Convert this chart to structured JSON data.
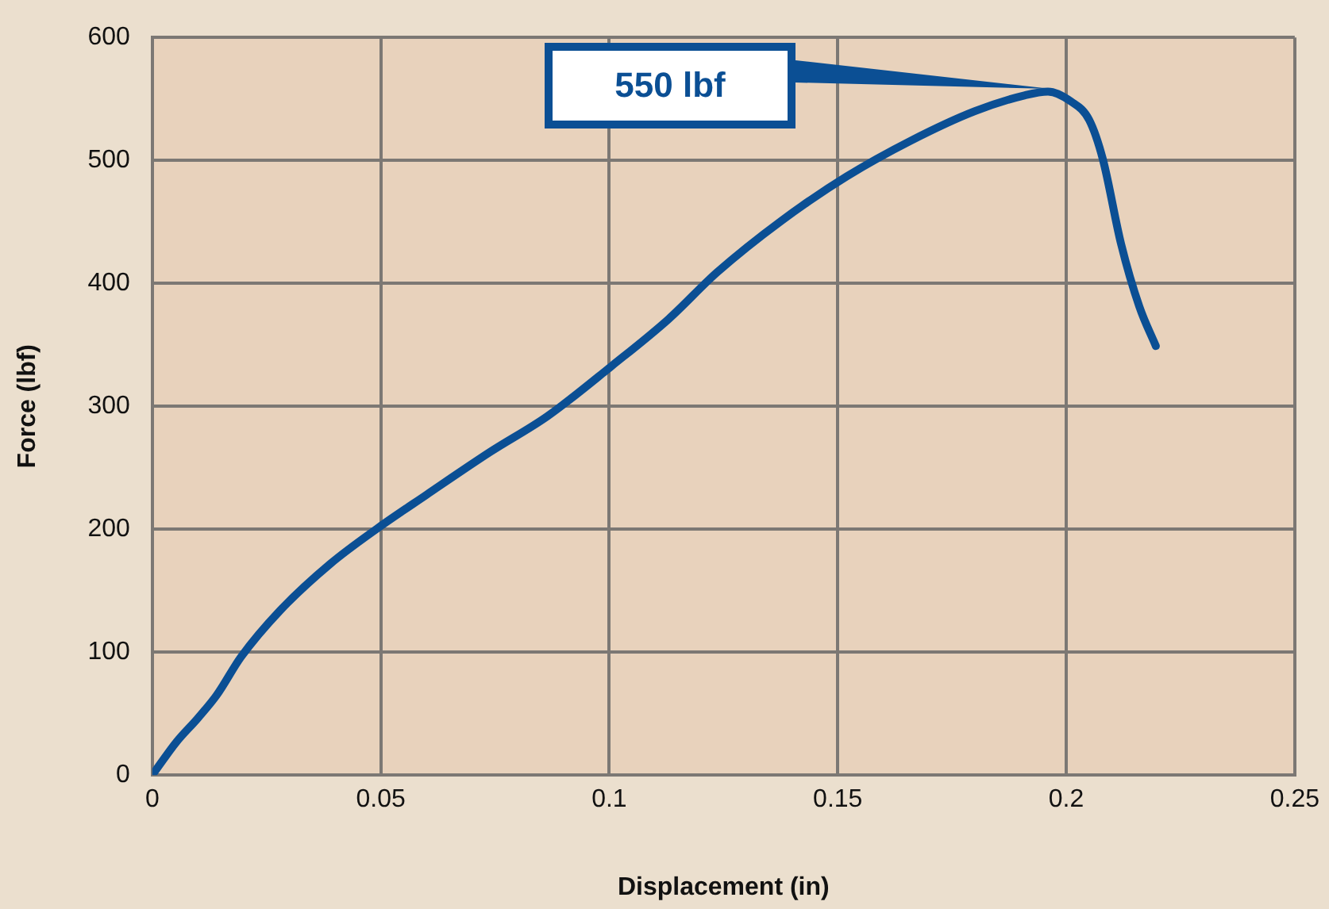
{
  "chart_data": {
    "type": "line",
    "xlabel": "Displacement (in)",
    "ylabel": "Force (lbf)",
    "xlim": [
      0,
      0.25
    ],
    "xticks": [
      0,
      0.05,
      0.1,
      0.15,
      0.2,
      0.25
    ],
    "ylim": [
      0,
      600
    ],
    "yticks": [
      0,
      100,
      200,
      300,
      400,
      500,
      600
    ],
    "grid": true,
    "legend": false,
    "marker": "none",
    "line_style": "solid",
    "series": [
      {
        "color": "#0b4f94",
        "x": [
          0,
          0.0053,
          0.0099,
          0.0141,
          0.0194,
          0.028,
          0.039,
          0.049,
          0.06,
          0.074,
          0.0865,
          0.1006,
          0.113,
          0.1236,
          0.1377,
          0.152,
          0.166,
          0.18,
          0.191,
          0.196,
          0.201,
          0.205,
          0.208,
          0.212,
          0.216,
          0.2196
        ],
        "values": [
          0,
          27,
          46,
          65,
          96,
          134,
          172,
          200,
          228,
          263,
          292,
          333,
          371,
          409,
          451,
          487,
          516,
          540,
          553,
          556,
          548,
          533,
          501,
          432,
          381,
          349
        ]
      }
    ],
    "annotations": [
      "550 lbf"
    ]
  }
}
